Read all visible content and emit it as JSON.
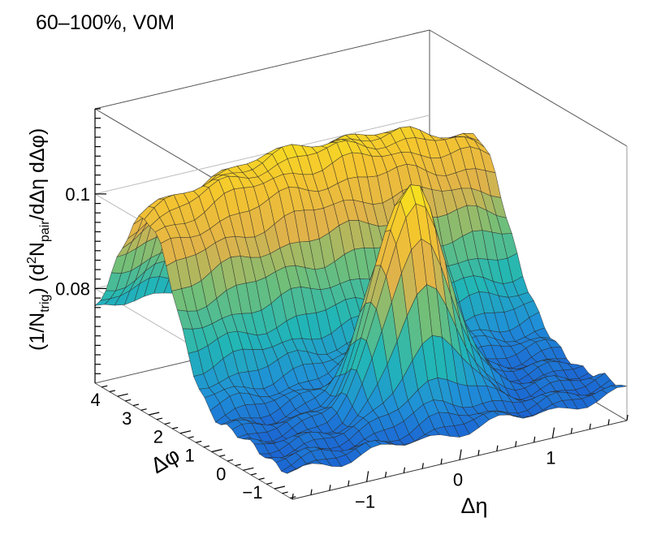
{
  "chart_data": {
    "type": "surface",
    "title": "60–100%, V0M",
    "xlabel": "Δη",
    "ylabel": "Δφ",
    "zlabel": "(1/N_trig) (d²N_pair/dΔη dΔφ)",
    "zlabel_parts": {
      "open": "(1/N",
      "trig_sub": "trig",
      "mid": ") (d",
      "sq_sup": "2",
      "n": "N",
      "pair_sub": "pair",
      "close": "/dΔη dΔφ)"
    },
    "xlim": [
      -1.8,
      1.8
    ],
    "ylim": [
      -1.5708,
      4.7124
    ],
    "zlim": [
      0.06,
      0.118
    ],
    "x_ticks": [
      -1,
      0,
      1
    ],
    "x_tick_labels": [
      "−1",
      "0",
      "1"
    ],
    "y_ticks": [
      -1,
      0,
      1,
      2,
      3,
      4
    ],
    "y_tick_labels": [
      "−1",
      "0",
      "1",
      "2",
      "3",
      "4"
    ],
    "z_ticks": [
      0.08,
      0.1
    ],
    "z_tick_labels": [
      "0.08",
      "0.1"
    ],
    "near_side_peak": {
      "eta": 0.0,
      "phi": 0.0,
      "plateau_height": 0.112,
      "baseline": 0.066
    },
    "away_side_ridge": {
      "phi": 3.1416,
      "height": 0.11,
      "baseline": 0.069
    },
    "palette": [
      "#1a4fd0",
      "#1f8fd8",
      "#22b7b5",
      "#6fbf7a",
      "#e0b24a",
      "#f4c430",
      "#f7e81a"
    ]
  }
}
